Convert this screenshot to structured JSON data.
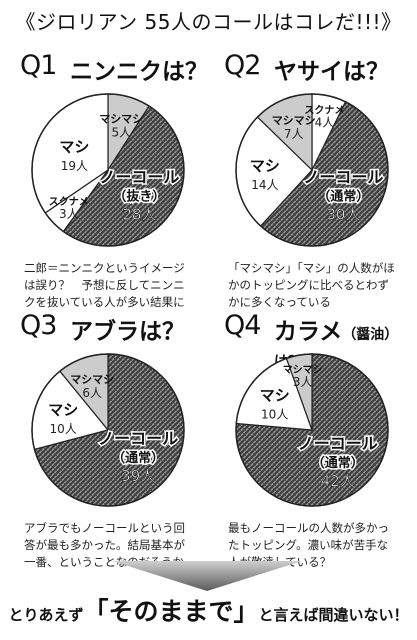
{
  "page": {
    "title": "《ジロリアン 55人のコールはコレだ!!!》"
  },
  "colors": {
    "pattern_dark": "#3a3a3a",
    "pattern_light": "#9a9a9a",
    "light_slice": "#cccccc",
    "white_slice": "#ffffff",
    "outline": "#222222"
  },
  "chart_data": [
    {
      "type": "pie",
      "question": "Q1",
      "title": "ニンニクは？",
      "subtitle": "",
      "categories": [
        "マシマシ",
        "ノーコール（抜き）",
        "スクナメ",
        "マシ"
      ],
      "values": [
        5,
        28,
        3,
        19
      ],
      "value_labels": [
        "5人",
        "28人",
        "3人",
        "19人"
      ],
      "styles": [
        "gray",
        "hatch",
        "white",
        "white"
      ],
      "caption": [
        "二郎＝ニンニクというイメージ",
        "は誤り？　予想に反してニンニ",
        "クを抜いている人が多い結果に"
      ]
    },
    {
      "type": "pie",
      "question": "Q2",
      "title": "ヤサイは？",
      "subtitle": "",
      "categories": [
        "スクナメ",
        "ノーコール（通常）",
        "マシ",
        "マシマシ"
      ],
      "values": [
        4,
        30,
        14,
        7
      ],
      "value_labels": [
        "4人",
        "30人",
        "14人",
        "7人"
      ],
      "styles": [
        "white",
        "hatch",
        "white",
        "gray"
      ],
      "caption": [
        "「マシマシ」「マシ」の人数がほ",
        "かのトッピングに比べるとわず",
        "かに多くなっている"
      ]
    },
    {
      "type": "pie",
      "question": "Q3",
      "title": "アブラは？",
      "subtitle": "",
      "categories": [
        "ノーコール（通常）",
        "マシ",
        "マシマシ"
      ],
      "values": [
        39,
        10,
        6
      ],
      "value_labels": [
        "39人",
        "10人",
        "6人"
      ],
      "styles": [
        "hatch",
        "white",
        "gray"
      ],
      "caption": [
        "アブラでもノーコールという回",
        "答が最も多かった。結局基本が",
        "一番、ということなのだろうか"
      ]
    },
    {
      "type": "pie",
      "question": "Q4",
      "title": "カラメ",
      "subtitle": "（醤油）は？",
      "categories": [
        "ノーコール（通常）",
        "マシ",
        "マシマシ"
      ],
      "values": [
        42,
        10,
        3
      ],
      "value_labels": [
        "42人",
        "10人",
        "3人"
      ],
      "styles": [
        "hatch",
        "white",
        "gray"
      ],
      "caption": [
        "最もノーコールの人数が多かっ",
        "たトッピング。濃い味が苦手な",
        "人が敬遠している？"
      ]
    }
  ],
  "footer": {
    "pre": "とりあえず",
    "highlight": "「そのままで」",
    "post": "と言えば間違いない！"
  }
}
